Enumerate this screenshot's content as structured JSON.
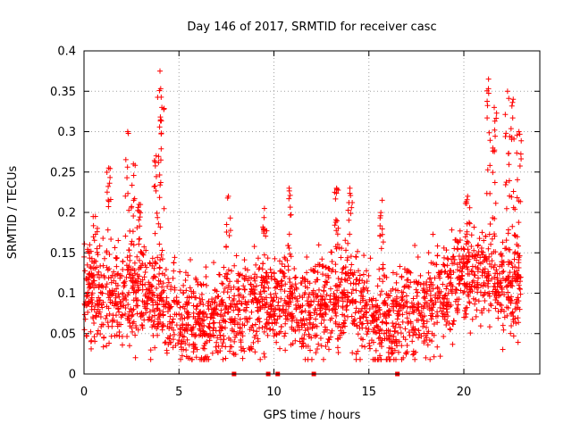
{
  "chart_data": {
    "type": "scatter",
    "title": "Day 146 of 2017, SRMTID for receiver casc",
    "xlabel": "GPS time / hours",
    "ylabel": "SRMTID / TECUs",
    "xlim": [
      0,
      24
    ],
    "ylim": [
      0,
      0.4
    ],
    "xticks": [
      0,
      5,
      10,
      15,
      20
    ],
    "xtick_labels": [
      "0",
      "5",
      "10",
      "15",
      "20"
    ],
    "yticks": [
      0,
      0.05,
      0.1,
      0.15,
      0.2,
      0.25,
      0.3,
      0.35,
      0.4
    ],
    "ytick_labels": [
      "0",
      "0.05",
      "0.1",
      "0.15",
      "0.2",
      "0.25",
      "0.3",
      "0.35",
      "0.4"
    ],
    "grid": true,
    "marker": "+",
    "color": "#ff0000",
    "series": [
      {
        "name": "SRMTID",
        "description": "Dense scatter of per-satellite SRMTID values every few minutes; approximate envelope",
        "baseline": [
          [
            0,
            0.09
          ],
          [
            1,
            0.095
          ],
          [
            2,
            0.1
          ],
          [
            3,
            0.1
          ],
          [
            4,
            0.09
          ],
          [
            5,
            0.075
          ],
          [
            6,
            0.06
          ],
          [
            7,
            0.07
          ],
          [
            8,
            0.08
          ],
          [
            9,
            0.09
          ],
          [
            10,
            0.09
          ],
          [
            11,
            0.085
          ],
          [
            12,
            0.08
          ],
          [
            13,
            0.09
          ],
          [
            14,
            0.1
          ],
          [
            15,
            0.07
          ],
          [
            16,
            0.065
          ],
          [
            17,
            0.075
          ],
          [
            18,
            0.085
          ],
          [
            19,
            0.1
          ],
          [
            20,
            0.12
          ],
          [
            21,
            0.13
          ],
          [
            22,
            0.11
          ],
          [
            23,
            0.12
          ]
        ],
        "spikes": [
          {
            "x": 0.3,
            "y": 0.16
          },
          {
            "x": 0.6,
            "y": 0.195
          },
          {
            "x": 1.3,
            "y": 0.255
          },
          {
            "x": 2.3,
            "y": 0.3
          },
          {
            "x": 2.6,
            "y": 0.26
          },
          {
            "x": 2.9,
            "y": 0.21
          },
          {
            "x": 3.8,
            "y": 0.27
          },
          {
            "x": 4.0,
            "y": 0.375
          },
          {
            "x": 4.1,
            "y": 0.33
          },
          {
            "x": 7.6,
            "y": 0.22
          },
          {
            "x": 9.5,
            "y": 0.205
          },
          {
            "x": 10.8,
            "y": 0.23
          },
          {
            "x": 13.3,
            "y": 0.23
          },
          {
            "x": 14.0,
            "y": 0.23
          },
          {
            "x": 15.7,
            "y": 0.215
          },
          {
            "x": 20.2,
            "y": 0.22
          },
          {
            "x": 21.3,
            "y": 0.365
          },
          {
            "x": 21.6,
            "y": 0.33
          },
          {
            "x": 22.3,
            "y": 0.35
          },
          {
            "x": 22.6,
            "y": 0.34
          },
          {
            "x": 22.9,
            "y": 0.3
          }
        ],
        "zero_points": [
          7.9,
          9.7,
          10.2,
          12.1,
          16.5
        ]
      }
    ]
  }
}
